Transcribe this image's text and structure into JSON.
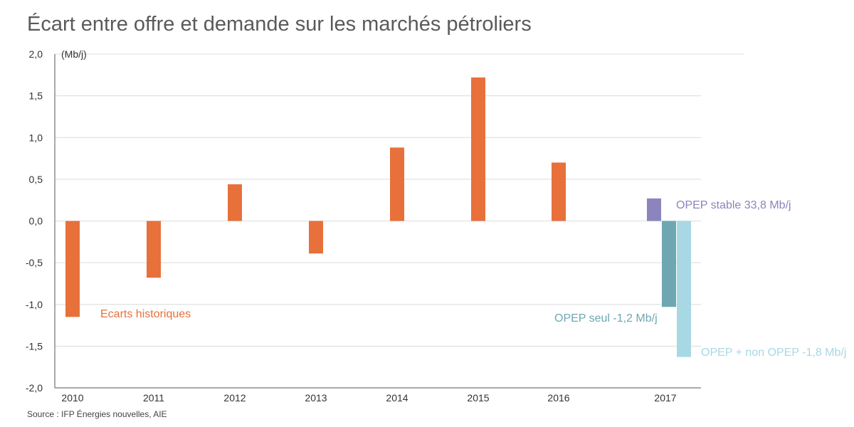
{
  "title": "Écart entre offre et demande sur les marchés pétroliers",
  "source": "Source : IFP Énergies nouvelles, AIE",
  "chart_data": {
    "type": "bar",
    "title": "Écart entre offre et demande sur les marchés pétroliers",
    "ylabel": "(Mb/j)",
    "xlabel": "",
    "ylim": [
      -2.0,
      2.0
    ],
    "yticks": [
      2.0,
      1.5,
      1.0,
      0.5,
      0.0,
      -0.5,
      -1.0,
      -1.5,
      -2.0
    ],
    "ytick_labels": [
      "2,0",
      "1,5",
      "1,0",
      "0,5",
      "0,0",
      "-0,5",
      "-1,0",
      "-1,5",
      "-2,0"
    ],
    "grid": true,
    "categories": [
      "2010",
      "2011",
      "2012",
      "2013",
      "2014",
      "2015",
      "2016",
      "2017"
    ],
    "series": [
      {
        "name": "Ecarts historiques",
        "color": "#e8703a",
        "values": [
          -1.15,
          -0.68,
          0.44,
          -0.39,
          0.88,
          1.72,
          0.7,
          null
        ]
      },
      {
        "name": "OPEP stable 33,8 Mb/j",
        "color": "#8b84bd",
        "values": [
          null,
          null,
          null,
          null,
          null,
          null,
          null,
          0.27
        ]
      },
      {
        "name": "OPEP seul -1,2 Mb/j",
        "color": "#6ea7b2",
        "values": [
          null,
          null,
          null,
          null,
          null,
          null,
          null,
          -1.03
        ]
      },
      {
        "name": "OPEP + non OPEP -1,8 Mb/j",
        "color": "#a8d8e4",
        "values": [
          null,
          null,
          null,
          null,
          null,
          null,
          null,
          -1.63
        ]
      }
    ],
    "annotations": [
      {
        "text": "Ecarts historiques",
        "series": 0,
        "color": "#e8703a"
      },
      {
        "text": "OPEP stable 33,8 Mb/j",
        "series": 1,
        "color": "#8b84bd"
      },
      {
        "text": "OPEP seul -1,2 Mb/j",
        "series": 2,
        "color": "#6ea7b2"
      },
      {
        "text": "OPEP + non OPEP -1,8 Mb/j",
        "series": 3,
        "color": "#a8d8e4"
      }
    ]
  }
}
